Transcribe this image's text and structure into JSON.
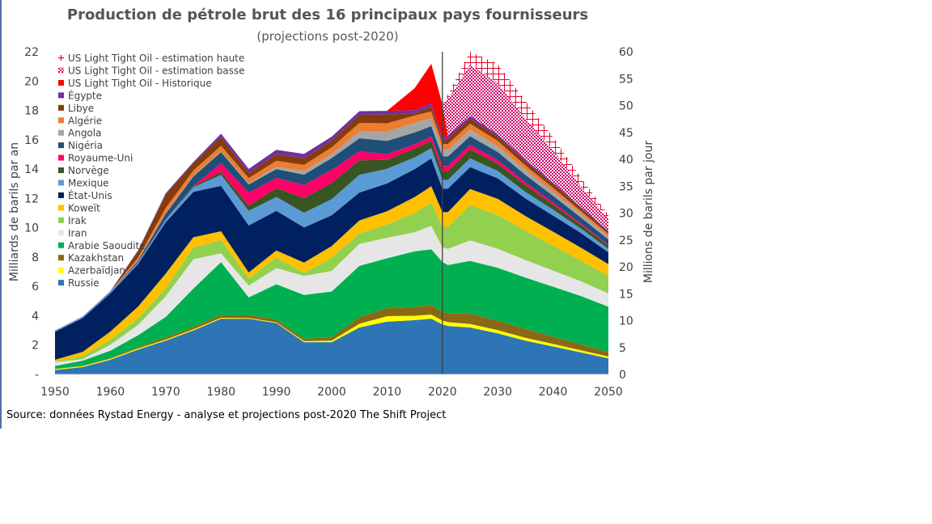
{
  "chart_data": {
    "type": "area",
    "title": "Production de pétrole brut des 16 principaux pays fournisseurs",
    "subtitle": "(projections post-2020)",
    "ylabel": "Milliards de barils par an",
    "y2label": "Millions de barils par jour",
    "xlim": [
      1950,
      2050
    ],
    "ylim": [
      0,
      22
    ],
    "y2lim": [
      0,
      60
    ],
    "x_ticks": [
      "1950",
      "1960",
      "1970",
      "1980",
      "1990",
      "2000",
      "2010",
      "2020",
      "2030",
      "2040",
      "2050"
    ],
    "y_ticks": [
      "-",
      "2",
      "4",
      "6",
      "8",
      "10",
      "12",
      "14",
      "16",
      "18",
      "20",
      "22"
    ],
    "y2_ticks": [
      "0",
      "5",
      "10",
      "15",
      "20",
      "25",
      "30",
      "35",
      "40",
      "45",
      "50",
      "55",
      "60"
    ],
    "vertical_marker_year": 2020,
    "grid": false,
    "legend_position": "top-left",
    "x": [
      1950,
      1955,
      1960,
      1965,
      1970,
      1975,
      1980,
      1985,
      1990,
      1995,
      2000,
      2005,
      2010,
      2015,
      2018,
      2020,
      2021,
      2025,
      2030,
      2035,
      2040,
      2045,
      2050
    ],
    "series": [
      {
        "name": "Russie",
        "color": "#2e75b6",
        "values": [
          0.3,
          0.5,
          1.0,
          1.7,
          2.3,
          3.0,
          3.8,
          3.8,
          3.5,
          2.2,
          2.2,
          3.2,
          3.6,
          3.7,
          3.8,
          3.4,
          3.3,
          3.2,
          2.8,
          2.3,
          1.9,
          1.5,
          1.1
        ]
      },
      {
        "name": "Azerbaïdjan",
        "color": "#ffff00",
        "values": [
          0.06,
          0.06,
          0.07,
          0.07,
          0.07,
          0.07,
          0.06,
          0.05,
          0.05,
          0.07,
          0.1,
          0.25,
          0.37,
          0.3,
          0.28,
          0.27,
          0.26,
          0.24,
          0.22,
          0.2,
          0.18,
          0.15,
          0.12
        ]
      },
      {
        "name": "Kazakhstan",
        "color": "#8b6914",
        "values": [
          0.02,
          0.03,
          0.05,
          0.1,
          0.15,
          0.18,
          0.2,
          0.2,
          0.2,
          0.15,
          0.25,
          0.45,
          0.55,
          0.6,
          0.65,
          0.6,
          0.6,
          0.7,
          0.65,
          0.6,
          0.5,
          0.4,
          0.3
        ]
      },
      {
        "name": "Arabie Saoudite",
        "color": "#00b050",
        "values": [
          0.2,
          0.35,
          0.5,
          0.8,
          1.4,
          2.6,
          3.6,
          1.2,
          2.4,
          3.0,
          3.1,
          3.5,
          3.4,
          3.8,
          3.8,
          3.4,
          3.3,
          3.6,
          3.6,
          3.5,
          3.4,
          3.3,
          3.1
        ]
      },
      {
        "name": "Iran",
        "color": "#e7e6e6",
        "values": [
          0.25,
          0.1,
          0.4,
          0.7,
          1.4,
          2.0,
          0.6,
          0.8,
          1.1,
          1.3,
          1.4,
          1.5,
          1.4,
          1.3,
          1.6,
          1.0,
          1.1,
          1.4,
          1.3,
          1.2,
          1.1,
          1.0,
          0.9
        ]
      },
      {
        "name": "Irak",
        "color": "#92d050",
        "values": [
          0.05,
          0.2,
          0.35,
          0.45,
          0.55,
          0.8,
          0.9,
          0.5,
          0.7,
          0.2,
          0.9,
          0.7,
          0.9,
          1.3,
          1.6,
          1.4,
          1.5,
          2.4,
          2.3,
          2.0,
          1.7,
          1.4,
          1.2
        ]
      },
      {
        "name": "Koweït",
        "color": "#ffc000",
        "values": [
          0.12,
          0.3,
          0.55,
          0.8,
          1.0,
          0.7,
          0.6,
          0.4,
          0.5,
          0.7,
          0.8,
          0.9,
          0.9,
          1.1,
          1.1,
          1.0,
          1.0,
          1.1,
          1.1,
          1.0,
          0.95,
          0.9,
          0.8
        ]
      },
      {
        "name": "État-Unis",
        "color": "#002060",
        "values": [
          1.9,
          2.3,
          2.6,
          2.9,
          3.5,
          3.1,
          3.1,
          3.2,
          2.7,
          2.4,
          2.1,
          1.9,
          1.9,
          1.9,
          1.9,
          1.6,
          1.6,
          1.5,
          1.4,
          1.2,
          1.1,
          1.0,
          0.8
        ]
      },
      {
        "name": "Mexique",
        "color": "#5b9bd5",
        "values": [
          0.07,
          0.09,
          0.11,
          0.12,
          0.18,
          0.3,
          0.75,
          1.0,
          0.95,
          1.0,
          1.1,
          1.2,
          1.0,
          0.8,
          0.7,
          0.6,
          0.6,
          0.6,
          0.5,
          0.45,
          0.4,
          0.3,
          0.25
        ]
      },
      {
        "name": "Norvège",
        "color": "#375623",
        "values": [
          0.0,
          0.0,
          0.0,
          0.0,
          0.01,
          0.07,
          0.2,
          0.35,
          0.6,
          1.0,
          1.1,
          1.0,
          0.6,
          0.6,
          0.5,
          0.6,
          0.6,
          0.6,
          0.5,
          0.45,
          0.35,
          0.25,
          0.2
        ]
      },
      {
        "name": "Royaume-Uni",
        "color": "#ff0066",
        "values": [
          0.0,
          0.0,
          0.0,
          0.0,
          0.0,
          0.02,
          0.6,
          0.9,
          0.7,
          0.9,
          0.9,
          0.6,
          0.4,
          0.3,
          0.3,
          0.35,
          0.35,
          0.3,
          0.25,
          0.2,
          0.15,
          0.1,
          0.08
        ]
      },
      {
        "name": "Nigéria",
        "color": "#1f4e79",
        "values": [
          0.0,
          0.0,
          0.01,
          0.1,
          0.4,
          0.65,
          0.75,
          0.55,
          0.6,
          0.7,
          0.8,
          0.9,
          0.9,
          0.8,
          0.7,
          0.65,
          0.65,
          0.6,
          0.55,
          0.5,
          0.45,
          0.4,
          0.35
        ]
      },
      {
        "name": "Angola",
        "color": "#a5a5a5",
        "values": [
          0.0,
          0.0,
          0.0,
          0.02,
          0.04,
          0.06,
          0.05,
          0.08,
          0.17,
          0.24,
          0.28,
          0.45,
          0.65,
          0.65,
          0.55,
          0.45,
          0.45,
          0.45,
          0.4,
          0.35,
          0.3,
          0.25,
          0.2
        ]
      },
      {
        "name": "Algérie",
        "color": "#ed7d31",
        "values": [
          0.0,
          0.0,
          0.01,
          0.2,
          0.35,
          0.35,
          0.38,
          0.35,
          0.4,
          0.42,
          0.45,
          0.6,
          0.55,
          0.5,
          0.45,
          0.4,
          0.4,
          0.4,
          0.35,
          0.3,
          0.25,
          0.2,
          0.18
        ]
      },
      {
        "name": "Libye",
        "color": "#843c0c",
        "values": [
          0.0,
          0.0,
          0.0,
          0.45,
          0.9,
          0.5,
          0.6,
          0.35,
          0.45,
          0.45,
          0.45,
          0.55,
          0.6,
          0.15,
          0.35,
          0.2,
          0.35,
          0.35,
          0.3,
          0.28,
          0.25,
          0.2,
          0.15
        ]
      },
      {
        "name": "Égypte",
        "color": "#7030a0",
        "values": [
          0.02,
          0.02,
          0.03,
          0.05,
          0.1,
          0.08,
          0.22,
          0.28,
          0.3,
          0.3,
          0.28,
          0.25,
          0.25,
          0.22,
          0.2,
          0.2,
          0.2,
          0.18,
          0.15,
          0.12,
          0.1,
          0.08,
          0.06
        ]
      },
      {
        "name": "US Light Tight Oil - Historique",
        "color": "#ff0000",
        "values": [
          0,
          0,
          0,
          0,
          0,
          0,
          0,
          0,
          0,
          0,
          0,
          0,
          0,
          1.5,
          2.7,
          2.3,
          0,
          0,
          0,
          0,
          0,
          0,
          0
        ]
      },
      {
        "name": "US Light Tight Oil - estimation basse",
        "color": "#cc0066",
        "values": [
          0,
          0,
          0,
          0,
          0,
          0,
          0,
          0,
          0,
          0,
          0,
          0,
          0,
          0,
          0,
          0,
          2.5,
          3.5,
          3.5,
          2.8,
          2.2,
          1.4,
          0.8
        ]
      },
      {
        "name": "US Light Tight Oil - estimation haute",
        "color": "#e8002a",
        "values": [
          0,
          0,
          0,
          0,
          0,
          0,
          0,
          0,
          0,
          0,
          0,
          0,
          0,
          0,
          0,
          0,
          0.3,
          0.9,
          1.3,
          1.2,
          0.9,
          0.6,
          0.3
        ]
      }
    ],
    "source": "Source: données Rystad Energy - analyse et projections post-2020  The Shift Project"
  }
}
